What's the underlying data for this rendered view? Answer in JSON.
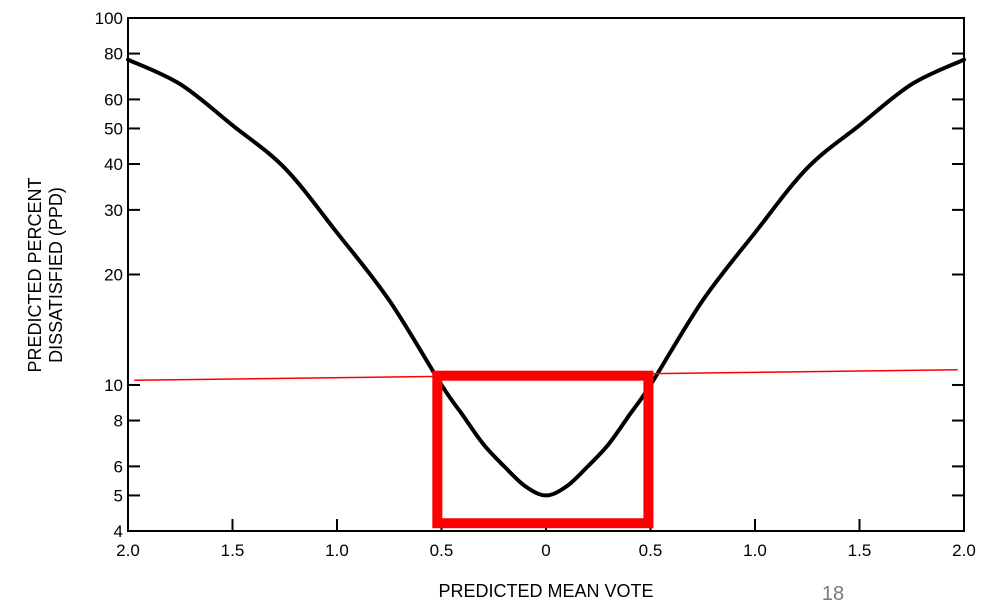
{
  "chart_data": {
    "type": "line",
    "title": "",
    "xlabel": "PREDICTED MEAN VOTE",
    "ylabel_lines": [
      "PREDICTED PERCENT",
      "DISSATISFIED (PPD)"
    ],
    "x_axis": {
      "range": [
        -2.0,
        2.0
      ],
      "ticks": [
        -2.0,
        -1.5,
        -1.0,
        -0.5,
        0,
        0.5,
        1.0,
        1.5,
        2.0
      ],
      "tick_labels": [
        "2.0",
        "1.5",
        "1.0",
        "0.5",
        "0",
        "0.5",
        "1.0",
        "1.5",
        "2.0"
      ]
    },
    "y_axis": {
      "scale": "log",
      "range": [
        4,
        100
      ],
      "ticks": [
        4,
        5,
        6,
        8,
        10,
        20,
        30,
        40,
        50,
        60,
        80,
        100
      ],
      "tick_labels": [
        "4",
        "5",
        "6",
        "8",
        "10",
        "20",
        "30",
        "40",
        "50",
        "60",
        "80",
        "100"
      ]
    },
    "grid": false,
    "series": [
      {
        "color": "#000000",
        "x": [
          -2.0,
          -1.75,
          -1.5,
          -1.25,
          -1.0,
          -0.75,
          -0.5,
          -0.4,
          -0.3,
          -0.2,
          -0.1,
          0,
          0.1,
          0.2,
          0.3,
          0.4,
          0.5,
          0.75,
          1.0,
          1.25,
          1.5,
          1.75,
          2.0
        ],
        "y": [
          77,
          66,
          51,
          39,
          26,
          17,
          10,
          8.3,
          6.9,
          6.0,
          5.3,
          5.0,
          5.3,
          6.0,
          6.9,
          8.3,
          10,
          17,
          26,
          39,
          51,
          66,
          77
        ]
      }
    ],
    "annotations": {
      "threshold_line": {
        "color": "#ff0000",
        "x": [
          -1.97,
          1.97
        ],
        "y": [
          10.3,
          11.0
        ]
      },
      "comfort_box": {
        "color": "#ff0000",
        "x": [
          -0.52,
          0.49
        ],
        "y": [
          4.2,
          10.6
        ]
      }
    }
  },
  "page_number": "18"
}
